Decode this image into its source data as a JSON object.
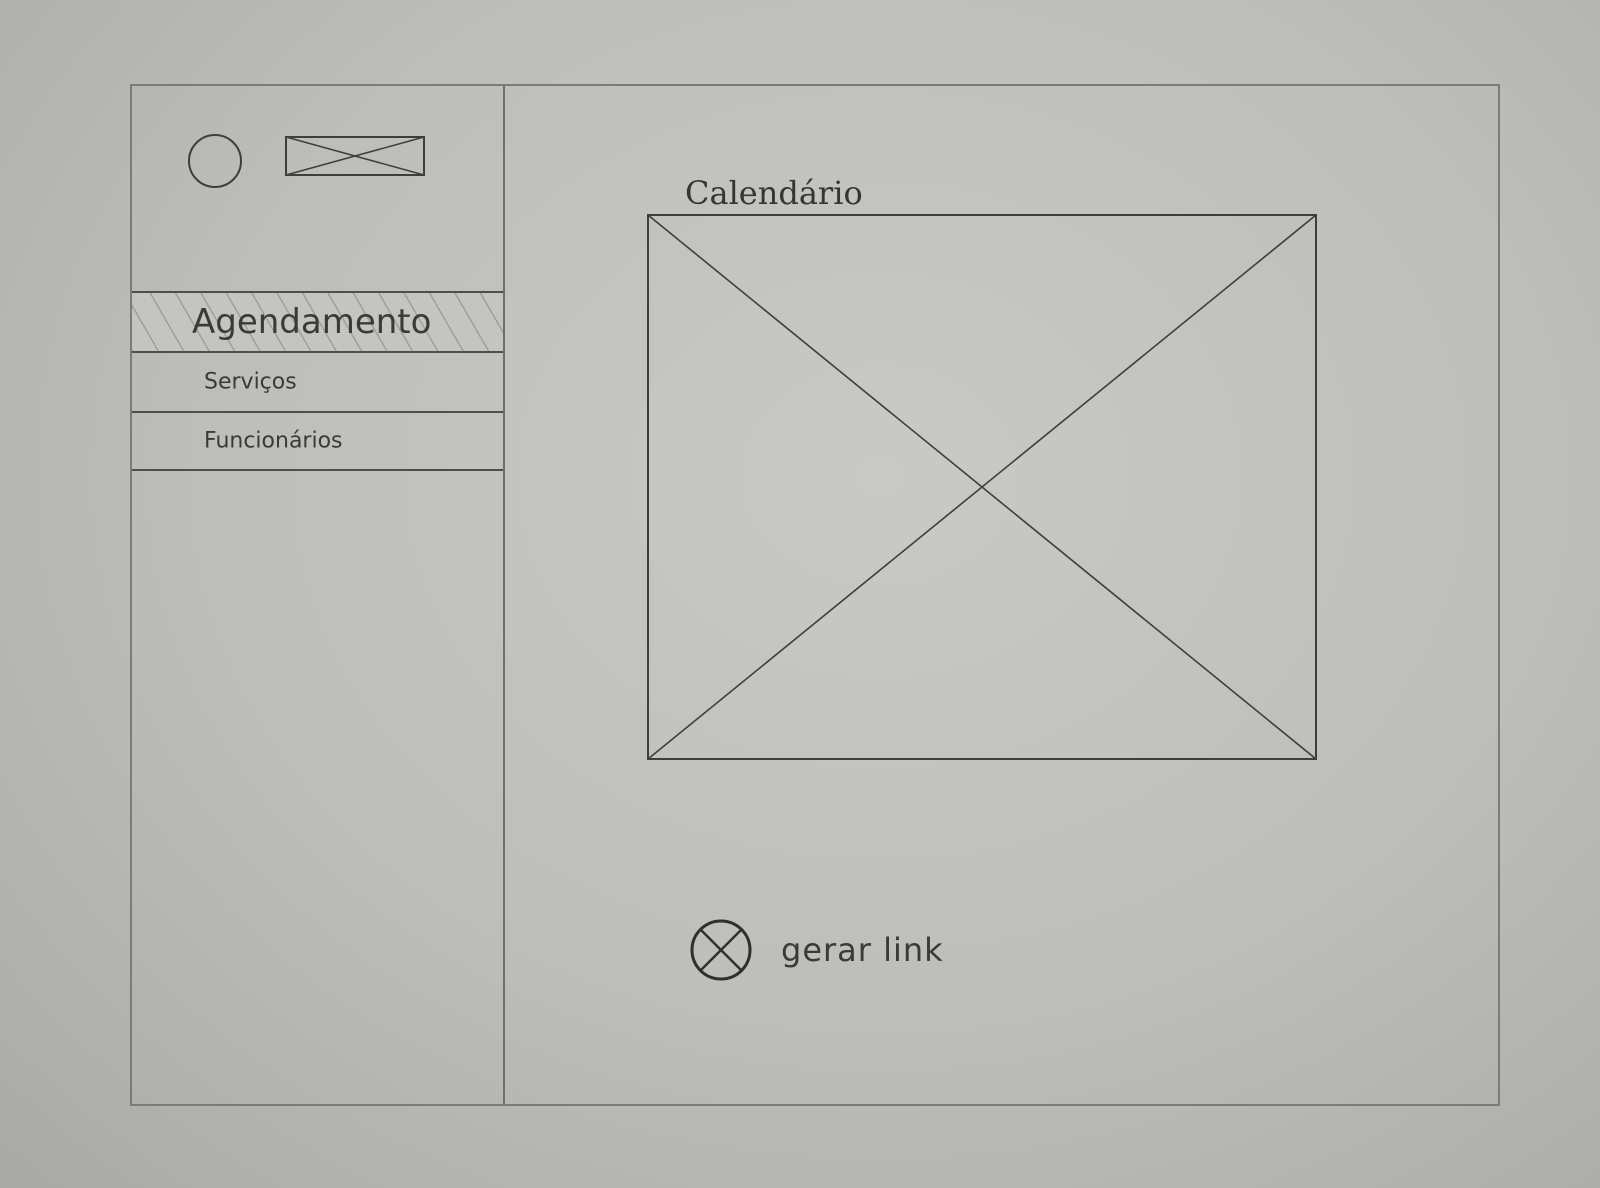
{
  "sidebar": {
    "logo_icon": "circle-placeholder",
    "logo_image": "image-placeholder",
    "items": [
      {
        "label": "Agendamento",
        "active": true
      },
      {
        "label": "Serviços",
        "active": false
      },
      {
        "label": "Funcionários",
        "active": false
      }
    ]
  },
  "main": {
    "calendar_title": "Calendário",
    "calendar_placeholder": "image-placeholder",
    "generate_icon": "crossed-circle-icon",
    "generate_label": "gerar link"
  },
  "colors": {
    "paper": "#bdbdbb",
    "pencil": "#3e3e3c",
    "frame": "#7b7b79"
  }
}
